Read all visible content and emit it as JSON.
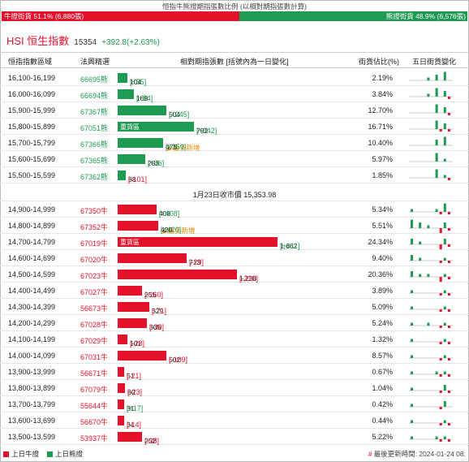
{
  "title": "恒指牛熊證期指張數比例 (以相對期指張數計算)",
  "ratio": {
    "bull_label": "牛證街貨 51.1% (6,880張)",
    "bear_label": "熊證街貨 48.9% (6,576張)",
    "bull_pct": 51.1,
    "bear_pct": 48.9,
    "bull_color": "#e3122b",
    "bear_color": "#1e9a52"
  },
  "index": {
    "name": "HSI 恒生指數",
    "value": "15354",
    "change": "+392.8(+2.63%)"
  },
  "headers": {
    "range": "恒指指數區域",
    "code": "法興精選",
    "contracts": "相對期指張數 [括號內為一日變化]",
    "pct": "街貨佔比(%)",
    "five_day": "五日街貨變化"
  },
  "bear_rows": [
    {
      "range": "16,100-16,199",
      "code": "66695熊",
      "contracts": 104,
      "contracts_text": "104",
      "delta": "[+55]",
      "dir": "up",
      "tag": "",
      "most_new": "",
      "pct": "2.19%",
      "spark": [
        0,
        0,
        0,
        0,
        1,
        0,
        2,
        0,
        3,
        0
      ]
    },
    {
      "range": "16,000-16,099",
      "code": "66694熊",
      "contracts": 168,
      "contracts_text": "168",
      "delta": "[+84]",
      "dir": "up",
      "tag": "",
      "most_new": "",
      "pct": "3.84%",
      "spark": [
        0,
        0,
        0,
        0,
        1,
        0,
        3,
        0,
        2,
        -1
      ]
    },
    {
      "range": "15,900-15,999",
      "code": "67367熊",
      "contracts": 504,
      "contracts_text": "504",
      "delta": "[+245]",
      "dir": "up",
      "tag": "",
      "most_new": "",
      "pct": "12.70%",
      "spark": [
        0,
        0,
        0,
        0,
        0,
        0,
        3,
        0,
        2,
        -1
      ]
    },
    {
      "range": "15,800-15,899",
      "code": "67051熊",
      "contracts": 792,
      "contracts_text": "792",
      "delta": "[+342]",
      "dir": "up",
      "tag": "重貨區",
      "most_new": "",
      "pct": "16.71%",
      "spark": [
        0,
        0,
        0,
        0,
        0,
        0,
        3,
        -1,
        2,
        -1
      ]
    },
    {
      "range": "15,700-15,799",
      "code": "67366熊",
      "contracts": 475,
      "contracts_text": "475",
      "delta": "[+359]",
      "dir": "up",
      "tag": "",
      "most_new": "▲最多新增",
      "pct": "10.40%",
      "spark": [
        0,
        0,
        0,
        0,
        0,
        0,
        2,
        0,
        3,
        0
      ]
    },
    {
      "range": "15,600-15,699",
      "code": "67365熊",
      "contracts": 283,
      "contracts_text": "283",
      "delta": "[+36]",
      "dir": "up",
      "tag": "",
      "most_new": "",
      "pct": "5.97%",
      "spark": [
        0,
        0,
        0,
        0,
        0,
        0,
        3,
        0,
        1,
        0
      ]
    },
    {
      "range": "15,500-15,599",
      "code": "67362熊",
      "contracts": 88,
      "contracts_text": "88",
      "delta": "[-101]",
      "dir": "down",
      "tag": "",
      "most_new": "",
      "pct": "1.85%",
      "spark": [
        0,
        0,
        0,
        0,
        0,
        0,
        3,
        0,
        1,
        -1
      ]
    }
  ],
  "close_label": "1月23日收市價 15,353.98",
  "bull_rows": [
    {
      "range": "14,900-14,999",
      "code": "67350牛",
      "contracts": 408,
      "contracts_text": "408",
      "delta": "[+408]",
      "dir": "up",
      "tag": "",
      "most_new": "",
      "pct": "5.34%",
      "spark": [
        1,
        0,
        0,
        0,
        0,
        0,
        1,
        -1,
        3,
        -1
      ]
    },
    {
      "range": "14,800-14,899",
      "code": "67352牛",
      "contracts": 420,
      "contracts_text": "420",
      "delta": "[+420]",
      "dir": "up",
      "tag": "",
      "most_new": "▲最多新增",
      "pct": "5.51%",
      "spark": [
        3,
        0,
        2,
        0,
        1,
        0,
        0,
        -2,
        2,
        -1
      ]
    },
    {
      "range": "14,700-14,799",
      "code": "67019牛",
      "contracts": 1662,
      "contracts_text": "1,662",
      "delta": "[+411]",
      "dir": "up",
      "tag": "重貨區",
      "most_new": "",
      "pct": "24.34%",
      "spark": [
        2,
        0,
        1,
        0,
        0,
        0,
        0,
        -3,
        2,
        -1
      ]
    },
    {
      "range": "14,600-14,699",
      "code": "67020牛",
      "contracts": 713,
      "contracts_text": "713",
      "delta": "[-29]",
      "dir": "down",
      "tag": "",
      "most_new": "",
      "pct": "9.40%",
      "spark": [
        2,
        0,
        1,
        0,
        0,
        0,
        0,
        -1,
        1,
        -1
      ]
    },
    {
      "range": "14,500-14,599",
      "code": "67023牛",
      "contracts": 1238,
      "contracts_text": "1,238",
      "delta": "[-210]",
      "dir": "down",
      "tag": "",
      "most_new": "",
      "pct": "20.36%",
      "spark": [
        2,
        0,
        1,
        0,
        1,
        0,
        0,
        -2,
        1,
        -1
      ]
    },
    {
      "range": "14,400-14,499",
      "code": "67027牛",
      "contracts": 255,
      "contracts_text": "255",
      "delta": "[-160]",
      "dir": "down",
      "tag": "",
      "most_new": "",
      "pct": "3.89%",
      "spark": [
        1,
        0,
        0,
        0,
        0,
        0,
        0,
        -1,
        1,
        -1
      ]
    },
    {
      "range": "14,300-14,399",
      "code": "56673牛",
      "contracts": 329,
      "contracts_text": "329",
      "delta": "[-71]",
      "dir": "down",
      "tag": "",
      "most_new": "",
      "pct": "5.09%",
      "spark": [
        1,
        0,
        0,
        0,
        0,
        0,
        0,
        -1,
        1,
        -1
      ]
    },
    {
      "range": "14,200-14,299",
      "code": "67028牛",
      "contracts": 305,
      "contracts_text": "305",
      "delta": "[-38]",
      "dir": "down",
      "tag": "",
      "most_new": "",
      "pct": "5.24%",
      "spark": [
        1,
        0,
        0,
        0,
        1,
        0,
        0,
        -1,
        1,
        -1
      ]
    },
    {
      "range": "14,100-14,199",
      "code": "67029牛",
      "contracts": 101,
      "contracts_text": "101",
      "delta": "[-28]",
      "dir": "down",
      "tag": "",
      "most_new": "",
      "pct": "1.32%",
      "spark": [
        1,
        0,
        0,
        0,
        0,
        0,
        0,
        -1,
        1,
        -1
      ]
    },
    {
      "range": "14,000-14,099",
      "code": "67031牛",
      "contracts": 502,
      "contracts_text": "502",
      "delta": "[-109]",
      "dir": "down",
      "tag": "",
      "most_new": "",
      "pct": "8.57%",
      "spark": [
        1,
        0,
        0,
        0,
        0,
        0,
        0,
        -1,
        1,
        -1
      ]
    },
    {
      "range": "13,900-13,999",
      "code": "56671牛",
      "contracts": 51,
      "contracts_text": "51",
      "delta": "[-21]",
      "dir": "down",
      "tag": "",
      "most_new": "",
      "pct": "0.67%",
      "spark": [
        1,
        0,
        0,
        0,
        0,
        0,
        1,
        -1,
        1,
        -1
      ]
    },
    {
      "range": "13,800-13,899",
      "code": "67079牛",
      "contracts": 80,
      "contracts_text": "80",
      "delta": "[-23]",
      "dir": "down",
      "tag": "",
      "most_new": "",
      "pct": "1.04%",
      "spark": [
        1,
        0,
        0,
        0,
        0,
        0,
        0,
        -1,
        2,
        -1
      ]
    },
    {
      "range": "13,700-13,799",
      "code": "55644牛",
      "contracts": 31,
      "contracts_text": "31",
      "delta": "[+17]",
      "dir": "up",
      "tag": "",
      "most_new": "",
      "pct": "0.42%",
      "spark": [
        1,
        0,
        0,
        0,
        0,
        0,
        0,
        -1,
        2,
        0
      ]
    },
    {
      "range": "13,600-13,699",
      "code": "56670牛",
      "contracts": 34,
      "contracts_text": "34",
      "delta": "[-14]",
      "dir": "down",
      "tag": "",
      "most_new": "",
      "pct": "0.44%",
      "spark": [
        1,
        0,
        0,
        0,
        0,
        0,
        0,
        -1,
        1,
        -1
      ]
    },
    {
      "range": "13,500-13,599",
      "code": "53937牛",
      "contracts": 252,
      "contracts_text": "252",
      "delta": "[-38]",
      "dir": "down",
      "tag": "",
      "most_new": "",
      "pct": "5.22%",
      "spark": [
        1,
        0,
        0,
        0,
        0,
        0,
        1,
        -1,
        1,
        -1
      ]
    }
  ],
  "legend": {
    "bull": "上日牛證",
    "bear": "上日熊證"
  },
  "updated": "最後更新時間: 2024-01-24 08:"
}
